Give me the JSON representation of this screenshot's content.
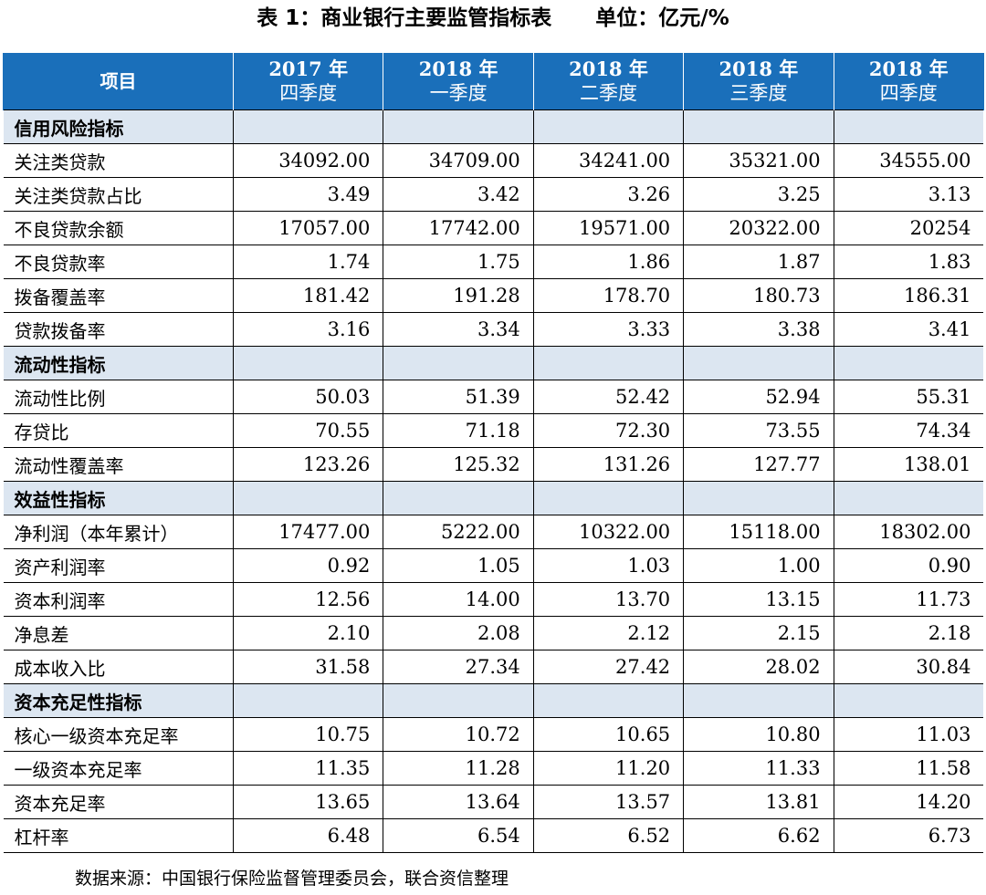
{
  "title": "表 1：商业银行主要监管指标表      单位：亿元/%",
  "header": {
    "item_label": "项目",
    "columns": [
      {
        "year": "2017 年",
        "quarter": "四季度"
      },
      {
        "year": "2018 年",
        "quarter": "一季度"
      },
      {
        "year": "2018 年",
        "quarter": "二季度"
      },
      {
        "year": "2018 年",
        "quarter": "三季度"
      },
      {
        "year": "2018 年",
        "quarter": "四季度"
      }
    ]
  },
  "sections": [
    {
      "name": "信用风险指标",
      "rows": [
        {
          "label": "关注类贷款",
          "values": [
            "34092.00",
            "34709.00",
            "34241.00",
            "35321.00",
            "34555.00"
          ]
        },
        {
          "label": "关注类贷款占比",
          "values": [
            "3.49",
            "3.42",
            "3.26",
            "3.25",
            "3.13"
          ]
        },
        {
          "label": "不良贷款余额",
          "values": [
            "17057.00",
            "17742.00",
            "19571.00",
            "20322.00",
            "20254"
          ]
        },
        {
          "label": "不良贷款率",
          "values": [
            "1.74",
            "1.75",
            "1.86",
            "1.87",
            "1.83"
          ]
        },
        {
          "label": "拨备覆盖率",
          "values": [
            "181.42",
            "191.28",
            "178.70",
            "180.73",
            "186.31"
          ]
        },
        {
          "label": "贷款拨备率",
          "values": [
            "3.16",
            "3.34",
            "3.33",
            "3.38",
            "3.41"
          ]
        }
      ]
    },
    {
      "name": "流动性指标",
      "rows": [
        {
          "label": "流动性比例",
          "values": [
            "50.03",
            "51.39",
            "52.42",
            "52.94",
            "55.31"
          ]
        },
        {
          "label": "存贷比",
          "values": [
            "70.55",
            "71.18",
            "72.30",
            "73.55",
            "74.34"
          ]
        },
        {
          "label": "流动性覆盖率",
          "values": [
            "123.26",
            "125.32",
            "131.26",
            "127.77",
            "138.01"
          ]
        }
      ]
    },
    {
      "name": "效益性指标",
      "rows": [
        {
          "label": "净利润（本年累计）",
          "values": [
            "17477.00",
            "5222.00",
            "10322.00",
            "15118.00",
            "18302.00"
          ]
        },
        {
          "label": "资产利润率",
          "values": [
            "0.92",
            "1.05",
            "1.03",
            "1.00",
            "0.90"
          ]
        },
        {
          "label": "资本利润率",
          "values": [
            "12.56",
            "14.00",
            "13.70",
            "13.15",
            "11.73"
          ]
        },
        {
          "label": "净息差",
          "values": [
            "2.10",
            "2.08",
            "2.12",
            "2.15",
            "2.18"
          ]
        },
        {
          "label": "成本收入比",
          "values": [
            "31.58",
            "27.34",
            "27.42",
            "28.02",
            "30.84"
          ]
        }
      ]
    },
    {
      "name": "资本充足性指标",
      "rows": [
        {
          "label": "核心一级资本充足率",
          "values": [
            "10.75",
            "10.72",
            "10.65",
            "10.80",
            "11.03"
          ]
        },
        {
          "label": "一级资本充足率",
          "values": [
            "11.35",
            "11.28",
            "11.20",
            "11.33",
            "11.58"
          ]
        },
        {
          "label": "资本充足率",
          "values": [
            "13.65",
            "13.64",
            "13.57",
            "13.81",
            "14.20"
          ]
        },
        {
          "label": "杠杆率",
          "values": [
            "6.48",
            "6.54",
            "6.52",
            "6.62",
            "6.73"
          ]
        }
      ]
    }
  ],
  "source": "数据来源：中国银行保险监督管理委员会，联合资信整理",
  "colors": {
    "header_bg": "#1a6fba",
    "section_bg": "#dce6f1"
  }
}
